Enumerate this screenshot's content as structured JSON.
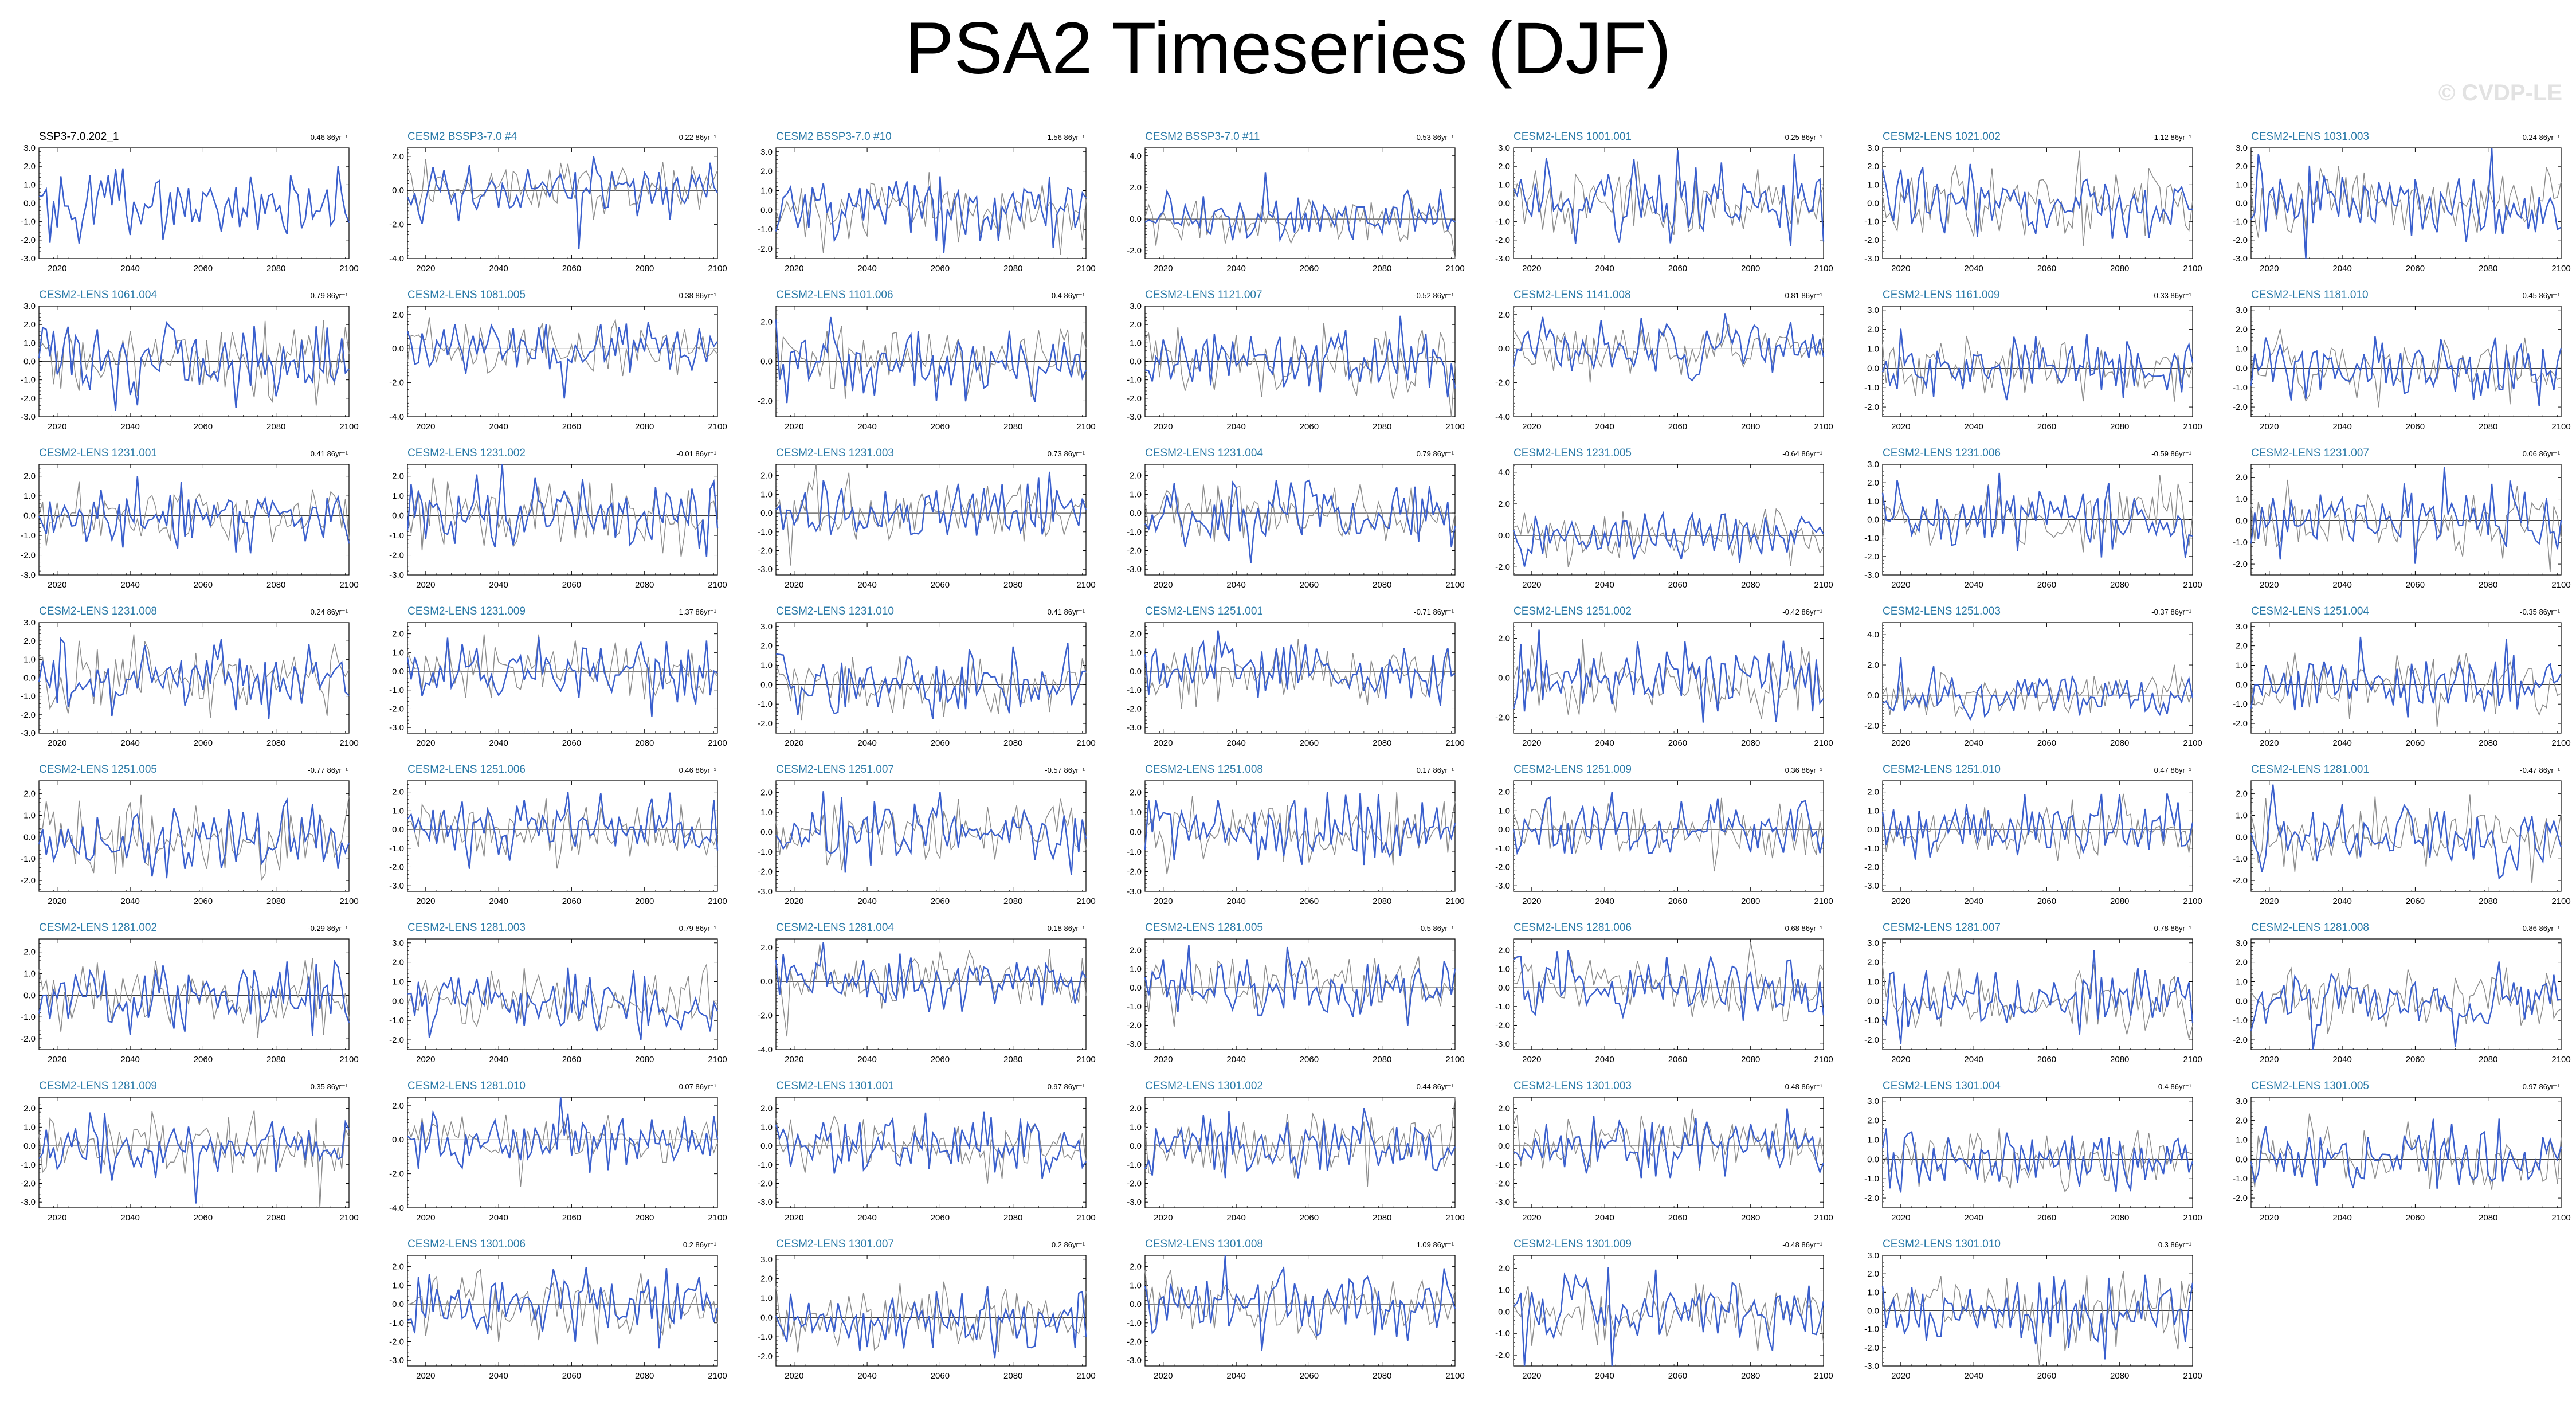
{
  "page": {
    "title": "PSA2 Timeseries (DJF)",
    "watermark": "© CVDP-LE"
  },
  "colors": {
    "model": "#3a5fcd",
    "observation": "#8c8c8c",
    "member_title": "#2a7aa8",
    "first_title": "#000000",
    "zero_line": "#000000"
  },
  "chart_data": {
    "type": "line",
    "x_range": [
      2015,
      2100
    ],
    "x_ticks": [
      2020,
      2040,
      2060,
      2080,
      2100
    ],
    "grid": false,
    "series_names": [
      "model member PSA2 index",
      "SSP3-7.0.202_1 reference"
    ],
    "panels": [
      {
        "title": "SSP3-7.0.202_1",
        "trend": "0.46 86yr⁻¹",
        "yticks": [
          "3.0",
          "2.0",
          "1.0",
          "0.0",
          "-1.0",
          "-2.0",
          "-3.0"
        ],
        "ylim": [
          -3,
          3
        ],
        "overlay": false
      },
      {
        "title": "CESM2 BSSP3-7.0 #4",
        "trend": "0.22 86yr⁻¹",
        "yticks": [
          "2.0",
          "0.0",
          "-2.0",
          "-4.0"
        ],
        "ylim": [
          -4,
          2.5
        ]
      },
      {
        "title": "CESM2 BSSP3-7.0 #10",
        "trend": "-1.56 86yr⁻¹",
        "yticks": [
          "3.0",
          "2.0",
          "1.0",
          "0.0",
          "-1.0",
          "-2.0"
        ],
        "ylim": [
          -2.5,
          3.2
        ]
      },
      {
        "title": "CESM2 BSSP3-7.0 #11",
        "trend": "-0.53 86yr⁻¹",
        "yticks": [
          "4.0",
          "2.0",
          "0.0",
          "-2.0"
        ],
        "ylim": [
          -2.5,
          4.5
        ]
      },
      {
        "title": "CESM2-LENS 1001.001",
        "trend": "-0.25 86yr⁻¹",
        "yticks": [
          "3.0",
          "2.0",
          "1.0",
          "0.0",
          "-1.0",
          "-2.0",
          "-3.0"
        ],
        "ylim": [
          -3,
          3
        ]
      },
      {
        "title": "CESM2-LENS 1021.002",
        "trend": "-1.12 86yr⁻¹",
        "yticks": [
          "3.0",
          "2.0",
          "1.0",
          "0.0",
          "-1.0",
          "-2.0",
          "-3.0"
        ],
        "ylim": [
          -3,
          3
        ]
      },
      {
        "title": "CESM2-LENS 1031.003",
        "trend": "-0.24 86yr⁻¹",
        "yticks": [
          "3.0",
          "2.0",
          "1.0",
          "0.0",
          "-1.0",
          "-2.0",
          "-3.0"
        ],
        "ylim": [
          -3,
          3
        ]
      },
      {
        "title": "CESM2-LENS 1061.004",
        "trend": "0.79 86yr⁻¹",
        "yticks": [
          "3.0",
          "2.0",
          "1.0",
          "0.0",
          "-1.0",
          "-2.0",
          "-3.0"
        ],
        "ylim": [
          -3,
          3
        ]
      },
      {
        "title": "CESM2-LENS 1081.005",
        "trend": "0.38 86yr⁻¹",
        "yticks": [
          "2.0",
          "0.0",
          "-2.0",
          "-4.0"
        ],
        "ylim": [
          -4,
          2.5
        ]
      },
      {
        "title": "CESM2-LENS 1101.006",
        "trend": "0.4 86yr⁻¹",
        "yticks": [
          "2.0",
          "0.0",
          "-2.0"
        ],
        "ylim": [
          -2.8,
          2.8
        ]
      },
      {
        "title": "CESM2-LENS 1121.007",
        "trend": "-0.52 86yr⁻¹",
        "yticks": [
          "3.0",
          "2.0",
          "1.0",
          "0.0",
          "-1.0",
          "-2.0",
          "-3.0"
        ],
        "ylim": [
          -3,
          3
        ]
      },
      {
        "title": "CESM2-LENS 1141.008",
        "trend": "0.81 86yr⁻¹",
        "yticks": [
          "2.0",
          "0.0",
          "-2.0",
          "-4.0"
        ],
        "ylim": [
          -4,
          2.5
        ]
      },
      {
        "title": "CESM2-LENS 1161.009",
        "trend": "-0.33 86yr⁻¹",
        "yticks": [
          "3.0",
          "2.0",
          "1.0",
          "0.0",
          "-1.0",
          "-2.0"
        ],
        "ylim": [
          -2.5,
          3.2
        ]
      },
      {
        "title": "CESM2-LENS 1181.010",
        "trend": "0.45 86yr⁻¹",
        "yticks": [
          "3.0",
          "2.0",
          "1.0",
          "0.0",
          "-1.0",
          "-2.0"
        ],
        "ylim": [
          -2.5,
          3.2
        ]
      },
      {
        "title": "CESM2-LENS 1231.001",
        "trend": "0.41 86yr⁻¹",
        "yticks": [
          "2.0",
          "1.0",
          "0.0",
          "-1.0",
          "-2.0",
          "-3.0"
        ],
        "ylim": [
          -3,
          2.6
        ]
      },
      {
        "title": "CESM2-LENS 1231.002",
        "trend": "-0.01 86yr⁻¹",
        "yticks": [
          "2.0",
          "1.0",
          "0.0",
          "-1.0",
          "-2.0",
          "-3.0"
        ],
        "ylim": [
          -3,
          2.6
        ]
      },
      {
        "title": "CESM2-LENS 1231.003",
        "trend": "0.73 86yr⁻¹",
        "yticks": [
          "2.0",
          "1.0",
          "0.0",
          "-1.0",
          "-2.0",
          "-3.0"
        ],
        "ylim": [
          -3.3,
          2.6
        ]
      },
      {
        "title": "CESM2-LENS 1231.004",
        "trend": "0.79 86yr⁻¹",
        "yticks": [
          "2.0",
          "1.0",
          "0.0",
          "-1.0",
          "-2.0",
          "-3.0"
        ],
        "ylim": [
          -3.3,
          2.6
        ]
      },
      {
        "title": "CESM2-LENS 1231.005",
        "trend": "-0.64 86yr⁻¹",
        "yticks": [
          "4.0",
          "2.0",
          "0.0",
          "-2.0"
        ],
        "ylim": [
          -2.5,
          4.5
        ]
      },
      {
        "title": "CESM2-LENS 1231.006",
        "trend": "-0.59 86yr⁻¹",
        "yticks": [
          "3.0",
          "2.0",
          "1.0",
          "0.0",
          "-1.0",
          "-2.0",
          "-3.0"
        ],
        "ylim": [
          -3,
          3
        ]
      },
      {
        "title": "CESM2-LENS 1231.007",
        "trend": "0.06 86yr⁻¹",
        "yticks": [
          "2.0",
          "1.0",
          "0.0",
          "-1.0",
          "-2.0"
        ],
        "ylim": [
          -2.5,
          2.6
        ]
      },
      {
        "title": "CESM2-LENS 1231.008",
        "trend": "0.24 86yr⁻¹",
        "yticks": [
          "3.0",
          "2.0",
          "1.0",
          "0.0",
          "-1.0",
          "-2.0",
          "-3.0"
        ],
        "ylim": [
          -3,
          3
        ]
      },
      {
        "title": "CESM2-LENS 1231.009",
        "trend": "1.37 86yr⁻¹",
        "yticks": [
          "2.0",
          "1.0",
          "0.0",
          "-1.0",
          "-2.0",
          "-3.0"
        ],
        "ylim": [
          -3.3,
          2.6
        ]
      },
      {
        "title": "CESM2-LENS 1231.010",
        "trend": "0.41 86yr⁻¹",
        "yticks": [
          "3.0",
          "2.0",
          "1.0",
          "0.0",
          "-1.0",
          "-2.0"
        ],
        "ylim": [
          -2.5,
          3.2
        ]
      },
      {
        "title": "CESM2-LENS 1251.001",
        "trend": "-0.71 86yr⁻¹",
        "yticks": [
          "2.0",
          "1.0",
          "0.0",
          "-1.0",
          "-2.0",
          "-3.0"
        ],
        "ylim": [
          -3.3,
          2.6
        ]
      },
      {
        "title": "CESM2-LENS 1251.002",
        "trend": "-0.42 86yr⁻¹",
        "yticks": [
          "2.0",
          "0.0",
          "-2.0"
        ],
        "ylim": [
          -2.8,
          2.8
        ]
      },
      {
        "title": "CESM2-LENS 1251.003",
        "trend": "-0.37 86yr⁻¹",
        "yticks": [
          "4.0",
          "2.0",
          "0.0",
          "-2.0"
        ],
        "ylim": [
          -2.5,
          4.8
        ]
      },
      {
        "title": "CESM2-LENS 1251.004",
        "trend": "-0.35 86yr⁻¹",
        "yticks": [
          "3.0",
          "2.0",
          "1.0",
          "0.0",
          "-1.0",
          "-2.0"
        ],
        "ylim": [
          -2.5,
          3.2
        ]
      },
      {
        "title": "CESM2-LENS 1251.005",
        "trend": "-0.77 86yr⁻¹",
        "yticks": [
          "2.0",
          "1.0",
          "0.0",
          "-1.0",
          "-2.0"
        ],
        "ylim": [
          -2.5,
          2.6
        ]
      },
      {
        "title": "CESM2-LENS 1251.006",
        "trend": "0.46 86yr⁻¹",
        "yticks": [
          "2.0",
          "1.0",
          "0.0",
          "-1.0",
          "-2.0",
          "-3.0"
        ],
        "ylim": [
          -3.3,
          2.6
        ]
      },
      {
        "title": "CESM2-LENS 1251.007",
        "trend": "-0.57 86yr⁻¹",
        "yticks": [
          "2.0",
          "1.0",
          "0.0",
          "-1.0",
          "-2.0",
          "-3.0"
        ],
        "ylim": [
          -3,
          2.6
        ]
      },
      {
        "title": "CESM2-LENS 1251.008",
        "trend": "0.17 86yr⁻¹",
        "yticks": [
          "2.0",
          "1.0",
          "0.0",
          "-1.0",
          "-2.0",
          "-3.0"
        ],
        "ylim": [
          -3,
          2.6
        ]
      },
      {
        "title": "CESM2-LENS 1251.009",
        "trend": "0.36 86yr⁻¹",
        "yticks": [
          "2.0",
          "1.0",
          "0.0",
          "-1.0",
          "-2.0",
          "-3.0"
        ],
        "ylim": [
          -3.3,
          2.6
        ]
      },
      {
        "title": "CESM2-LENS 1251.010",
        "trend": "0.47 86yr⁻¹",
        "yticks": [
          "2.0",
          "1.0",
          "0.0",
          "-1.0",
          "-2.0",
          "-3.0"
        ],
        "ylim": [
          -3.3,
          2.6
        ]
      },
      {
        "title": "CESM2-LENS 1281.001",
        "trend": "-0.47 86yr⁻¹",
        "yticks": [
          "2.0",
          "1.0",
          "0.0",
          "-1.0",
          "-2.0"
        ],
        "ylim": [
          -2.5,
          2.6
        ]
      },
      {
        "title": "CESM2-LENS 1281.002",
        "trend": "-0.29 86yr⁻¹",
        "yticks": [
          "2.0",
          "1.0",
          "0.0",
          "-1.0",
          "-2.0"
        ],
        "ylim": [
          -2.5,
          2.6
        ]
      },
      {
        "title": "CESM2-LENS 1281.003",
        "trend": "-0.79 86yr⁻¹",
        "yticks": [
          "3.0",
          "2.0",
          "1.0",
          "0.0",
          "-1.0",
          "-2.0"
        ],
        "ylim": [
          -2.5,
          3.2
        ]
      },
      {
        "title": "CESM2-LENS 1281.004",
        "trend": "0.18 86yr⁻¹",
        "yticks": [
          "2.0",
          "0.0",
          "-2.0",
          "-4.0"
        ],
        "ylim": [
          -4,
          2.5
        ]
      },
      {
        "title": "CESM2-LENS 1281.005",
        "trend": "-0.5 86yr⁻¹",
        "yticks": [
          "2.0",
          "1.0",
          "0.0",
          "-1.0",
          "-2.0",
          "-3.0"
        ],
        "ylim": [
          -3.3,
          2.6
        ]
      },
      {
        "title": "CESM2-LENS 1281.006",
        "trend": "-0.68 86yr⁻¹",
        "yticks": [
          "2.0",
          "1.0",
          "0.0",
          "-1.0",
          "-2.0",
          "-3.0"
        ],
        "ylim": [
          -3.3,
          2.6
        ]
      },
      {
        "title": "CESM2-LENS 1281.007",
        "trend": "-0.78 86yr⁻¹",
        "yticks": [
          "3.0",
          "2.0",
          "1.0",
          "0.0",
          "-1.0",
          "-2.0"
        ],
        "ylim": [
          -2.5,
          3.2
        ]
      },
      {
        "title": "CESM2-LENS 1281.008",
        "trend": "-0.86 86yr⁻¹",
        "yticks": [
          "3.0",
          "2.0",
          "1.0",
          "0.0",
          "-1.0",
          "-2.0"
        ],
        "ylim": [
          -2.5,
          3.2
        ]
      },
      {
        "title": "CESM2-LENS 1281.009",
        "trend": "0.35 86yr⁻¹",
        "yticks": [
          "2.0",
          "1.0",
          "0.0",
          "-1.0",
          "-2.0",
          "-3.0"
        ],
        "ylim": [
          -3.3,
          2.6
        ]
      },
      {
        "title": "CESM2-LENS 1281.010",
        "trend": "0.07 86yr⁻¹",
        "yticks": [
          "2.0",
          "0.0",
          "-2.0",
          "-4.0"
        ],
        "ylim": [
          -4,
          2.5
        ]
      },
      {
        "title": "CESM2-LENS 1301.001",
        "trend": "0.97 86yr⁻¹",
        "yticks": [
          "2.0",
          "1.0",
          "0.0",
          "-1.0",
          "-2.0",
          "-3.0"
        ],
        "ylim": [
          -3.3,
          2.6
        ]
      },
      {
        "title": "CESM2-LENS 1301.002",
        "trend": "0.44 86yr⁻¹",
        "yticks": [
          "2.0",
          "1.0",
          "0.0",
          "-1.0",
          "-2.0",
          "-3.0"
        ],
        "ylim": [
          -3.3,
          2.6
        ]
      },
      {
        "title": "CESM2-LENS 1301.003",
        "trend": "0.48 86yr⁻¹",
        "yticks": [
          "2.0",
          "1.0",
          "0.0",
          "-1.0",
          "-2.0",
          "-3.0"
        ],
        "ylim": [
          -3.3,
          2.6
        ]
      },
      {
        "title": "CESM2-LENS 1301.004",
        "trend": "0.4 86yr⁻¹",
        "yticks": [
          "3.0",
          "2.0",
          "1.0",
          "0.0",
          "-1.0",
          "-2.0"
        ],
        "ylim": [
          -2.5,
          3.2
        ]
      },
      {
        "title": "CESM2-LENS 1301.005",
        "trend": "-0.97 86yr⁻¹",
        "yticks": [
          "3.0",
          "2.0",
          "1.0",
          "0.0",
          "-1.0",
          "-2.0"
        ],
        "ylim": [
          -2.5,
          3.2
        ]
      },
      {
        "title": "CESM2-LENS 1301.006",
        "trend": "0.2 86yr⁻¹",
        "yticks": [
          "2.0",
          "1.0",
          "0.0",
          "-1.0",
          "-2.0",
          "-3.0"
        ],
        "ylim": [
          -3.3,
          2.6
        ]
      },
      {
        "title": "CESM2-LENS 1301.007",
        "trend": "0.2 86yr⁻¹",
        "yticks": [
          "3.0",
          "2.0",
          "1.0",
          "0.0",
          "-1.0",
          "-2.0"
        ],
        "ylim": [
          -2.5,
          3.2
        ]
      },
      {
        "title": "CESM2-LENS 1301.008",
        "trend": "1.09 86yr⁻¹",
        "yticks": [
          "2.0",
          "1.0",
          "0.0",
          "-1.0",
          "-2.0",
          "-3.0"
        ],
        "ylim": [
          -3.3,
          2.6
        ]
      },
      {
        "title": "CESM2-LENS 1301.009",
        "trend": "-0.48 86yr⁻¹",
        "yticks": [
          "2.0",
          "1.0",
          "0.0",
          "-1.0",
          "-2.0"
        ],
        "ylim": [
          -2.5,
          2.6
        ]
      },
      {
        "title": "CESM2-LENS 1301.010",
        "trend": "0.3 86yr⁻¹",
        "yticks": [
          "3.0",
          "2.0",
          "1.0",
          "0.0",
          "-1.0",
          "-2.0",
          "-3.0"
        ],
        "ylim": [
          -3,
          3
        ]
      }
    ]
  }
}
